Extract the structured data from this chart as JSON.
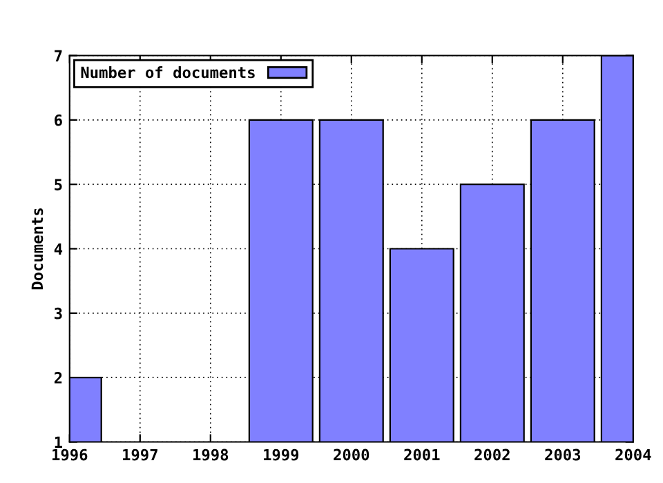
{
  "chart_data": {
    "type": "bar",
    "ylabel": "Documents",
    "x": [
      1996,
      1997,
      1998,
      1999,
      2000,
      2001,
      2002,
      2003,
      2004
    ],
    "series": [
      {
        "name": "Number of documents",
        "color": "#8080ff",
        "values": [
          2,
          null,
          null,
          6,
          6,
          4,
          5,
          6,
          7
        ]
      }
    ],
    "xlim": [
      1996,
      2004
    ],
    "xticks": [
      1996,
      1997,
      1998,
      1999,
      2000,
      2001,
      2002,
      2003,
      2004
    ],
    "ylim": [
      1,
      7
    ],
    "yticks": [
      1,
      2,
      3,
      4,
      5,
      6,
      7
    ],
    "grid": true,
    "legend": "top left"
  }
}
